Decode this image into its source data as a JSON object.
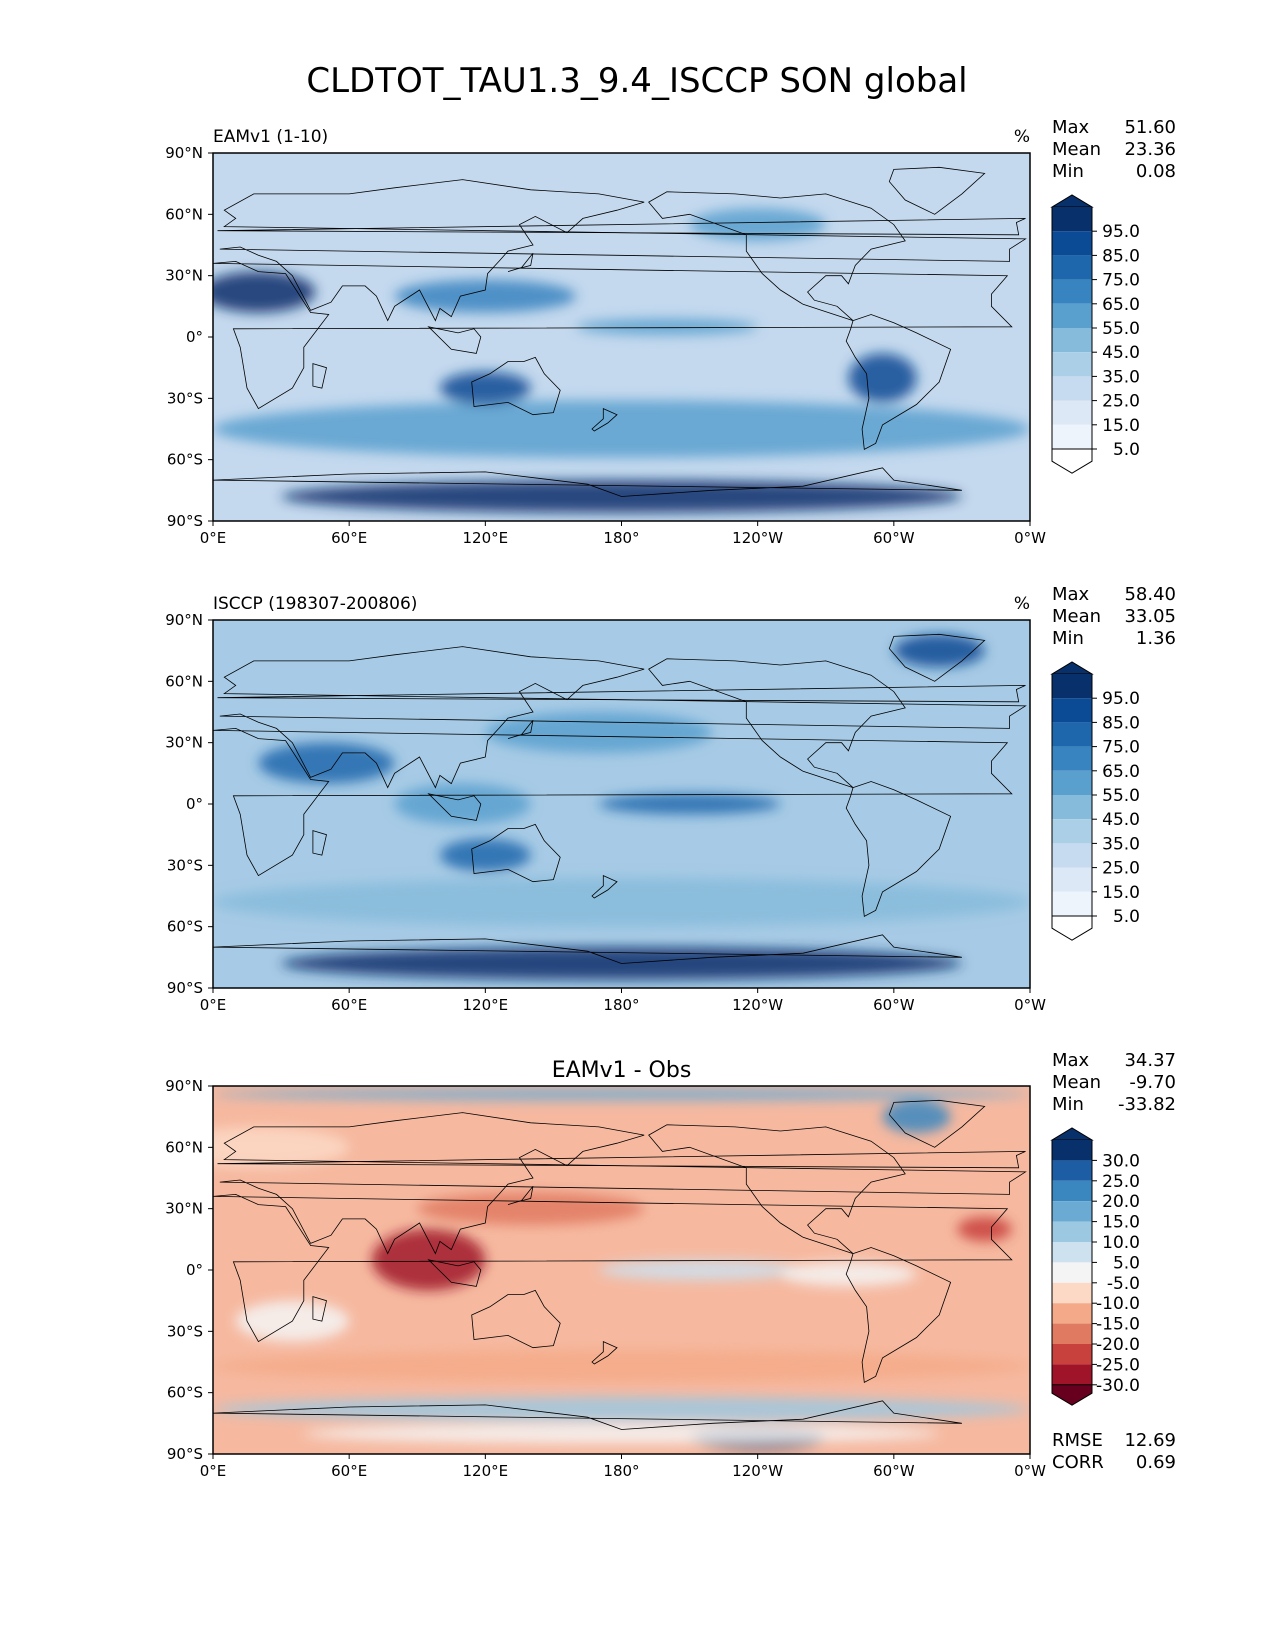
{
  "figure_title": "CLDTOT_TAU1.3_9.4_ISCCP SON global",
  "chart_data": [
    {
      "type": "heatmap",
      "name": "model",
      "title": "EAMv1 (1-10)",
      "center_title": "",
      "units": "%",
      "stats": [
        {
          "label": "Max",
          "value": "51.60"
        },
        {
          "label": "Mean",
          "value": "23.36"
        },
        {
          "label": "Min",
          "value": "0.08"
        }
      ],
      "colorbar": {
        "palette": "blues",
        "levels": [
          "95.0",
          "85.0",
          "75.0",
          "65.0",
          "55.0",
          "45.0",
          "35.0",
          "25.0",
          "15.0",
          "5.0"
        ],
        "colors": [
          "#08306b",
          "#0b4a94",
          "#1f67ad",
          "#3884c0",
          "#5aa0cf",
          "#86bbdb",
          "#abcfe6",
          "#c6dbef",
          "#dce8f5",
          "#eef4fb",
          "#ffffff"
        ]
      },
      "xlabels": [
        "0°E",
        "60°E",
        "120°E",
        "180°",
        "120°W",
        "60°W",
        "0°W"
      ],
      "ylabels": [
        "90°N",
        "60°N",
        "30°N",
        "0°",
        "30°S",
        "60°S",
        "90°S"
      ],
      "field": {
        "background": "#c4d9ee",
        "blobs": [
          {
            "lon": 180,
            "lat": -45,
            "rx": 180,
            "ry": 14,
            "level": 4
          },
          {
            "lon": 120,
            "lat": 20,
            "rx": 40,
            "ry": 8,
            "level": 3
          },
          {
            "lon": 240,
            "lat": 55,
            "rx": 30,
            "ry": 8,
            "level": 4
          },
          {
            "lon": 20,
            "lat": 22,
            "rx": 25,
            "ry": 10,
            "level": 0
          },
          {
            "lon": 120,
            "lat": -25,
            "rx": 20,
            "ry": 8,
            "level": 1
          },
          {
            "lon": 180,
            "lat": -78,
            "rx": 150,
            "ry": 8,
            "level": 0
          },
          {
            "lon": 295,
            "lat": -20,
            "rx": 15,
            "ry": 12,
            "level": 1
          },
          {
            "lon": 200,
            "lat": 5,
            "rx": 40,
            "ry": 4,
            "level": 4
          }
        ]
      }
    },
    {
      "type": "heatmap",
      "name": "observation",
      "title": "ISCCP (198307-200806)",
      "center_title": "",
      "units": "%",
      "stats": [
        {
          "label": "Max",
          "value": "58.40"
        },
        {
          "label": "Mean",
          "value": "33.05"
        },
        {
          "label": "Min",
          "value": "1.36"
        }
      ],
      "colorbar": {
        "palette": "blues",
        "levels": [
          "95.0",
          "85.0",
          "75.0",
          "65.0",
          "55.0",
          "45.0",
          "35.0",
          "25.0",
          "15.0",
          "5.0"
        ],
        "colors": [
          "#08306b",
          "#0b4a94",
          "#1f67ad",
          "#3884c0",
          "#5aa0cf",
          "#86bbdb",
          "#abcfe6",
          "#c6dbef",
          "#dce8f5",
          "#eef4fb",
          "#ffffff"
        ]
      },
      "xlabels": [
        "0°E",
        "60°E",
        "120°E",
        "180°",
        "120°W",
        "60°W",
        "0°W"
      ],
      "ylabels": [
        "90°N",
        "60°N",
        "30°N",
        "0°",
        "30°S",
        "60°S",
        "90°S"
      ],
      "field": {
        "background": "#a7cbe6",
        "blobs": [
          {
            "lon": 180,
            "lat": -48,
            "rx": 180,
            "ry": 12,
            "level": 5
          },
          {
            "lon": 170,
            "lat": 35,
            "rx": 50,
            "ry": 10,
            "level": 4
          },
          {
            "lon": 110,
            "lat": 0,
            "rx": 30,
            "ry": 10,
            "level": 4
          },
          {
            "lon": 210,
            "lat": 0,
            "rx": 40,
            "ry": 5,
            "level": 2
          },
          {
            "lon": 180,
            "lat": -78,
            "rx": 150,
            "ry": 8,
            "level": 0
          },
          {
            "lon": 50,
            "lat": 20,
            "rx": 30,
            "ry": 10,
            "level": 2
          },
          {
            "lon": 120,
            "lat": -25,
            "rx": 20,
            "ry": 8,
            "level": 2
          },
          {
            "lon": 320,
            "lat": 75,
            "rx": 20,
            "ry": 8,
            "level": 1
          }
        ]
      }
    },
    {
      "type": "heatmap",
      "name": "difference",
      "title": "",
      "center_title": "EAMv1 - Obs",
      "units": "",
      "stats": [
        {
          "label": "Max",
          "value": "34.37"
        },
        {
          "label": "Mean",
          "value": "-9.70"
        },
        {
          "label": "Min",
          "value": "-33.82"
        }
      ],
      "colorbar": {
        "palette": "diverging",
        "levels": [
          "30.0",
          "25.0",
          "20.0",
          "15.0",
          "10.0",
          "5.0",
          "-5.0",
          "-10.0",
          "-15.0",
          "-20.0",
          "-25.0",
          "-30.0"
        ],
        "colors": [
          "#08306b",
          "#1c5da3",
          "#3a87c0",
          "#6aaad3",
          "#9cc8e2",
          "#cde1ef",
          "#f4f4f4",
          "#fbd9c5",
          "#f4aa88",
          "#e07a60",
          "#c8413c",
          "#a01429",
          "#67001f"
        ]
      },
      "xlabels": [
        "0°E",
        "60°E",
        "120°E",
        "180°",
        "120°W",
        "60°W",
        "0°W"
      ],
      "ylabels": [
        "90°N",
        "60°N",
        "30°N",
        "0°",
        "30°S",
        "60°S",
        "90°S"
      ],
      "bottom_stats": [
        {
          "label": "RMSE",
          "value": "12.69"
        },
        {
          "label": "CORR",
          "value": "0.69"
        }
      ],
      "field": {
        "background": "#f6b9a0",
        "blobs": [
          {
            "lon": 180,
            "lat": -68,
            "rx": 180,
            "ry": 6,
            "level": 4
          },
          {
            "lon": 240,
            "lat": -82,
            "rx": 30,
            "ry": 6,
            "level": 0
          },
          {
            "lon": 180,
            "lat": -80,
            "rx": 140,
            "ry": 5,
            "level": 6
          },
          {
            "lon": 310,
            "lat": 75,
            "rx": 15,
            "ry": 8,
            "level": 2
          },
          {
            "lon": 180,
            "lat": 86,
            "rx": 180,
            "ry": 3,
            "level": 3
          },
          {
            "lon": 95,
            "lat": 5,
            "rx": 25,
            "ry": 15,
            "level": 11
          },
          {
            "lon": 215,
            "lat": 0,
            "rx": 45,
            "ry": 5,
            "level": 5
          },
          {
            "lon": 35,
            "lat": -25,
            "rx": 25,
            "ry": 10,
            "level": 6
          },
          {
            "lon": 140,
            "lat": 30,
            "rx": 50,
            "ry": 8,
            "level": 9
          },
          {
            "lon": 340,
            "lat": 20,
            "rx": 12,
            "ry": 6,
            "level": 10
          },
          {
            "lon": 280,
            "lat": -2,
            "rx": 30,
            "ry": 6,
            "level": 6
          },
          {
            "lon": 180,
            "lat": -47,
            "rx": 180,
            "ry": 8,
            "level": 8
          },
          {
            "lon": 20,
            "lat": 60,
            "rx": 40,
            "ry": 10,
            "level": 7
          }
        ]
      }
    }
  ],
  "colors": {
    "ocean_line": "#000000",
    "frame": "#000000"
  }
}
